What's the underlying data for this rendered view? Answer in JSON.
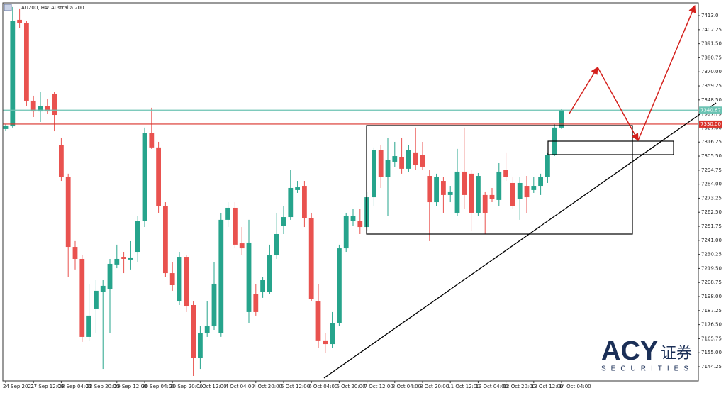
{
  "chart_data": {
    "type": "candlestick",
    "title": "AU200, H4:  Australia 200",
    "categories": [
      "24 Sep 2021",
      null,
      null,
      null,
      "27 Sep 12:00",
      null,
      null,
      null,
      "28 Sep 04:00",
      null,
      null,
      null,
      "28 Sep 20:00",
      null,
      null,
      null,
      "29 Sep 12:00",
      null,
      null,
      null,
      "30 Sep 04:00",
      null,
      null,
      null,
      "30 Sep 20:00",
      null,
      null,
      null,
      "1 Oct 12:00",
      null,
      null,
      null,
      "4 Oct 04:00",
      null,
      null,
      null,
      "4 Oct 20:00",
      null,
      null,
      null,
      "5 Oct 12:00",
      null,
      null,
      null,
      "6 Oct 04:00",
      null,
      null,
      null,
      "6 Oct 20:00",
      null,
      null,
      null,
      "7 Oct 12:00",
      null,
      null,
      null,
      "8 Oct 04:00",
      null,
      null,
      null,
      "8 Oct 20:00",
      null,
      null,
      null,
      "11 Oct 12:00",
      null,
      null,
      null,
      "12 Oct 04:00",
      null,
      null,
      null,
      "12 Oct 20:00",
      null,
      null,
      null,
      "13 Oct 12:00",
      null,
      null,
      null,
      "14 Oct 04:00"
    ],
    "open": [
      7326.2,
      7328.3,
      7409.8,
      7407.1,
      7347.9,
      7339.7,
      7343.6,
      7353.3,
      7313.7,
      7289.3,
      7236.0,
      7226.8,
      7167.1,
      7188.8,
      7201.3,
      7203.5,
      7222.5,
      7228.4,
      7226.3,
      7232.2,
      7255.6,
      7322.9,
      7312.1,
      7267.5,
      7215.9,
      7194.2,
      7228.4,
      7191.5,
      7150.8,
      7169.8,
      7175.2,
      7169.8,
      7256.7,
      7265.9,
      7238.7,
      7186.1,
      7199.7,
      7201.3,
      7201.3,
      7229.5,
      7252.3,
      7258.8,
      7279.5,
      7282.7,
      7257.8,
      7194.2,
      7164.4,
      7161.6,
      7177.9,
      7234.9,
      7255.6,
      7255.6,
      7251.2,
      7274.0,
      7309.9,
      7289.3,
      7301.2,
      7304.5,
      7295.8,
      7308.3,
      7306.6,
      7290.3,
      7270.2,
      7286.5,
      7275.7,
      7262.1,
      7293.6,
      7292.0,
      7262.1,
      7275.7,
      7275.7,
      7271.9,
      7294.7,
      7284.9,
      7272.9,
      7282.7,
      7279.5,
      7282.7,
      7289.3,
      7306.6,
      7327.3
    ],
    "high": [
      7330.0,
      7419.6,
      7418.5,
      7408.7,
      7351.7,
      7354.4,
      7349.0,
      7354.4,
      7319.1,
      7292.0,
      7240.4,
      7229.5,
      7207.8,
      7210.5,
      7210.5,
      7226.8,
      7237.7,
      7232.2,
      7240.4,
      7259.4,
      7327.3,
      7342.5,
      7316.4,
      7270.2,
      7224.1,
      7232.2,
      7229.5,
      7194.2,
      7175.2,
      7194.2,
      7224.1,
      7262.1,
      7270.2,
      7270.2,
      7251.2,
      7256.7,
      7207.8,
      7213.2,
      7237.7,
      7262.1,
      7267.5,
      7294.7,
      7286.5,
      7286.5,
      7262.1,
      7207.8,
      7169.8,
      7186.1,
      7237.7,
      7262.1,
      7264.8,
      7264.8,
      7278.4,
      7312.1,
      7313.7,
      7319.1,
      7316.4,
      7319.1,
      7313.7,
      7327.3,
      7316.4,
      7294.7,
      7292.0,
      7289.3,
      7282.7,
      7311.0,
      7327.3,
      7294.7,
      7292.5,
      7278.4,
      7281.1,
      7300.1,
      7308.3,
      7289.3,
      7289.3,
      7290.3,
      7289.3,
      7292.0,
      7308.3,
      7330.0,
      7341.5
    ],
    "low": [
      7325.1,
      7327.3,
      7403.3,
      7343.6,
      7335.4,
      7331.6,
      7338.1,
      7324.5,
      7286.5,
      7213.2,
      7218.7,
      7163.3,
      7164.4,
      7169.8,
      7142.6,
      7169.8,
      7219.7,
      7215.9,
      7218.7,
      7224.1,
      7251.2,
      7311.0,
      7262.1,
      7213.2,
      7202.4,
      7191.5,
      7186.1,
      7137.2,
      7142.6,
      7167.1,
      7172.5,
      7167.1,
      7251.2,
      7234.9,
      7229.5,
      7177.9,
      7183.4,
      7197.0,
      7199.7,
      7226.8,
      7245.8,
      7256.7,
      7277.3,
      7251.2,
      7194.2,
      7158.9,
      7155.1,
      7158.9,
      7175.2,
      7232.2,
      7252.3,
      7245.8,
      7248.5,
      7267.5,
      7281.1,
      7259.4,
      7297.4,
      7292.0,
      7293.6,
      7294.7,
      7294.7,
      7240.4,
      7267.5,
      7262.1,
      7270.2,
      7259.4,
      7264.8,
      7248.5,
      7259.4,
      7245.8,
      7270.2,
      7267.5,
      7286.5,
      7264.8,
      7256.7,
      7262.1,
      7277.3,
      7275.7,
      7284.9,
      7305.5,
      7326.2
    ],
    "close": [
      7328.9,
      7408.7,
      7407.1,
      7347.9,
      7339.7,
      7343.6,
      7339.7,
      7337.0,
      7289.3,
      7236.0,
      7226.8,
      7167.1,
      7183.4,
      7202.4,
      7206.2,
      7223.0,
      7226.8,
      7226.8,
      7227.9,
      7255.6,
      7322.9,
      7312.1,
      7267.5,
      7215.9,
      7206.7,
      7228.4,
      7190.4,
      7150.8,
      7169.8,
      7175.2,
      7207.8,
      7256.7,
      7265.9,
      7237.7,
      7234.9,
      7239.3,
      7186.1,
      7210.5,
      7229.5,
      7245.8,
      7258.8,
      7281.1,
      7281.6,
      7257.8,
      7195.9,
      7164.4,
      7161.6,
      7177.9,
      7234.9,
      7259.4,
      7259.4,
      7251.2,
      7274.0,
      7309.9,
      7289.3,
      7302.8,
      7305.5,
      7295.8,
      7309.9,
      7299.0,
      7297.4,
      7270.2,
      7289.3,
      7275.7,
      7278.4,
      7293.6,
      7275.7,
      7262.1,
      7290.3,
      7262.1,
      7272.9,
      7293.6,
      7289.3,
      7267.5,
      7284.9,
      7274.0,
      7282.7,
      7289.3,
      7306.6,
      7327.3,
      7340.67
    ],
    "up_color": "#26a48c",
    "down_color": "#e9524f",
    "ylim": [
      7133.4,
      7422.8
    ],
    "yticks": [
      {
        "value": 7413,
        "label": "7413.0"
      },
      7402.25,
      {
        "value": 7391.5,
        "label": "7391.50"
      },
      7380.75,
      {
        "value": 7370,
        "label": "7370.00"
      },
      7359.25,
      {
        "value": 7348.5,
        "label": "7348.50"
      },
      7337.75,
      {
        "value": 7327,
        "label": "7327.00"
      },
      7316.25,
      {
        "value": 7305.5,
        "label": "7305.50"
      },
      7294.75,
      {
        "value": 7284,
        "label": "7284.00"
      },
      7273.25,
      {
        "value": 7262.5,
        "label": "7262.50"
      },
      7251.75,
      {
        "value": 7241,
        "label": "7241.00"
      },
      7230.25,
      {
        "value": 7219.5,
        "label": "7219.50"
      },
      7208.75,
      {
        "value": 7198,
        "label": "7198.00"
      },
      7187.25,
      {
        "value": 7176.5,
        "label": "7176.50"
      },
      7165.75,
      {
        "value": 7155,
        "label": "7155.00"
      },
      7144.25
    ],
    "levels": [
      {
        "value": 7340.67,
        "label": "7340.67",
        "color": "#6cc3b3"
      },
      {
        "value": 7330,
        "label": "7330.00",
        "color": "#d9322a"
      }
    ],
    "watermark": {
      "brand": "ACY",
      "chinese": "证券",
      "tagline": "SECURITIES"
    }
  }
}
